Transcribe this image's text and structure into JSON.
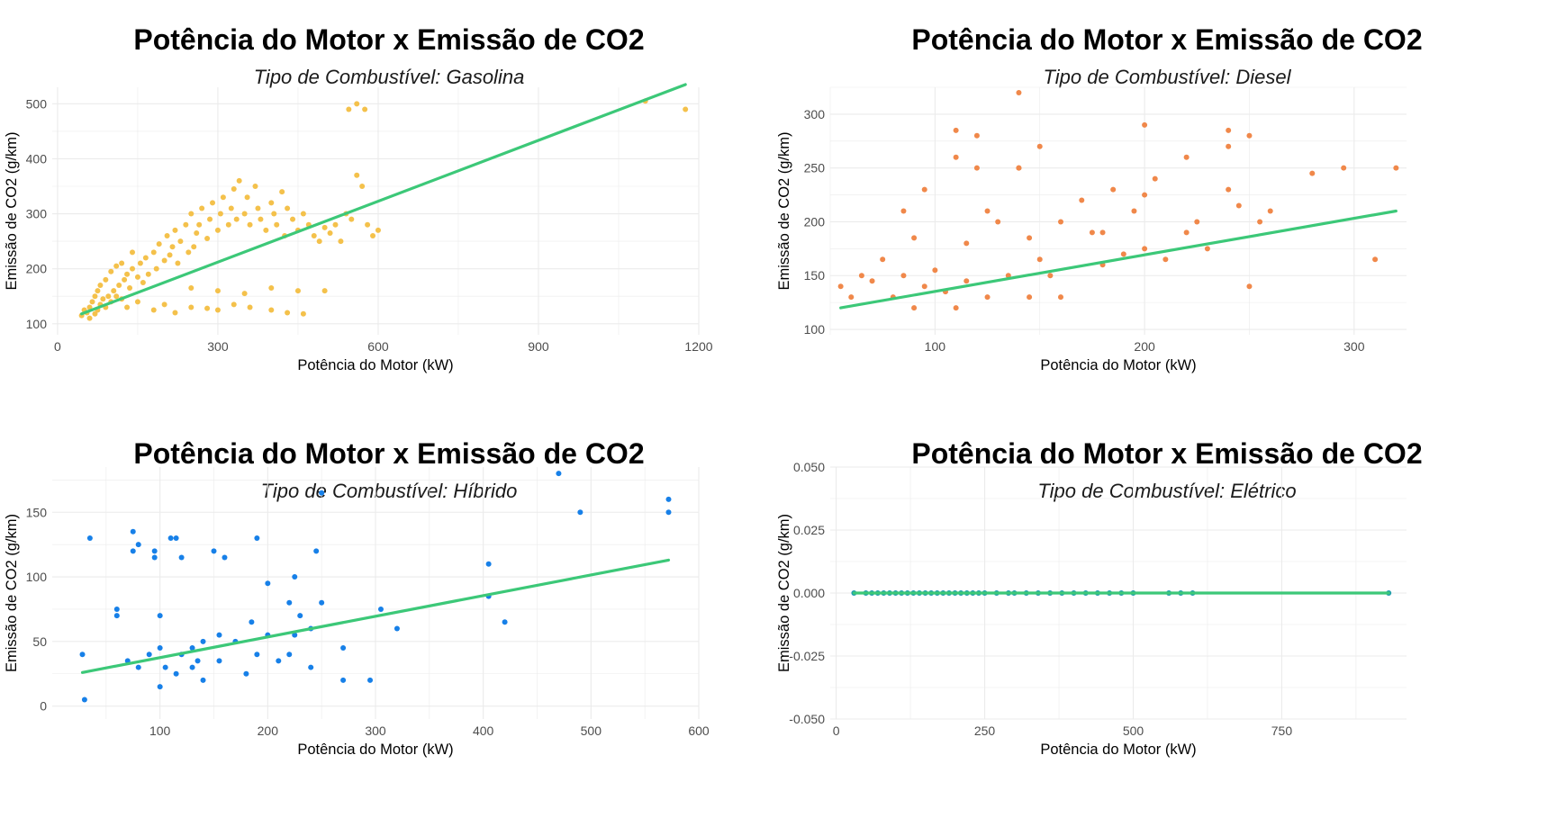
{
  "colors": {
    "gasolina": "#f4c14b",
    "diesel": "#f0884a",
    "hibrido": "#1780e8",
    "eletrico": "#1f9bb0",
    "trend": "#3cc878",
    "grid": "#ebebeb"
  },
  "chart_data": [
    {
      "type": "scatter",
      "title": "Potência do Motor x Emissão de CO2",
      "subtitle": "Tipo de Combustível: Gasolina",
      "xlabel": "Potência do Motor (kW)",
      "ylabel": "Emissão de CO2 (g/km)",
      "xlim": [
        -10,
        1200
      ],
      "ylim": [
        80,
        530
      ],
      "xticks": [
        0,
        300,
        600,
        900,
        1200
      ],
      "yticks": [
        100,
        200,
        300,
        400,
        500
      ],
      "trend": {
        "x": [
          45,
          1175
        ],
        "y": [
          118,
          535
        ]
      },
      "x": [
        45,
        50,
        55,
        60,
        60,
        65,
        70,
        70,
        75,
        75,
        80,
        80,
        85,
        90,
        90,
        95,
        100,
        100,
        105,
        110,
        110,
        115,
        120,
        120,
        125,
        130,
        135,
        140,
        140,
        150,
        155,
        160,
        165,
        170,
        180,
        185,
        190,
        200,
        205,
        210,
        215,
        220,
        225,
        230,
        240,
        245,
        250,
        255,
        260,
        265,
        270,
        280,
        285,
        290,
        300,
        305,
        310,
        320,
        325,
        330,
        335,
        340,
        350,
        355,
        360,
        370,
        375,
        380,
        390,
        400,
        405,
        410,
        420,
        425,
        430,
        440,
        450,
        460,
        470,
        480,
        490,
        500,
        510,
        520,
        530,
        540,
        550,
        560,
        570,
        580,
        590,
        600,
        130,
        150,
        180,
        200,
        220,
        250,
        280,
        300,
        330,
        360,
        400,
        430,
        460,
        250,
        300,
        350,
        400,
        450,
        500,
        560,
        545,
        575,
        1100,
        1175
      ],
      "y": [
        115,
        125,
        120,
        130,
        110,
        140,
        118,
        150,
        125,
        160,
        135,
        170,
        145,
        130,
        180,
        150,
        140,
        195,
        160,
        150,
        205,
        170,
        145,
        210,
        180,
        190,
        165,
        200,
        230,
        185,
        210,
        175,
        220,
        190,
        230,
        200,
        245,
        215,
        260,
        225,
        240,
        270,
        210,
        250,
        280,
        230,
        300,
        240,
        265,
        280,
        310,
        255,
        290,
        320,
        270,
        300,
        330,
        280,
        310,
        345,
        290,
        360,
        300,
        330,
        280,
        350,
        310,
        290,
        270,
        320,
        300,
        280,
        340,
        260,
        310,
        290,
        270,
        300,
        280,
        260,
        250,
        275,
        265,
        280,
        250,
        300,
        290,
        370,
        350,
        280,
        260,
        270,
        130,
        140,
        125,
        135,
        120,
        130,
        128,
        125,
        135,
        130,
        125,
        120,
        118,
        165,
        160,
        155,
        165,
        160,
        160,
        500,
        490,
        490,
        505,
        490
      ]
    },
    {
      "type": "scatter",
      "title": "Potência do Motor x Emissão de CO2",
      "subtitle": "Tipo de Combustível: Diesel",
      "xlabel": "Potência do Motor (kW)",
      "ylabel": "Emissão de CO2 (g/km)",
      "xlim": [
        50,
        325
      ],
      "ylim": [
        95,
        325
      ],
      "xticks": [
        100,
        200,
        300
      ],
      "yticks": [
        100,
        150,
        200,
        250,
        300
      ],
      "trend": {
        "x": [
          55,
          320
        ],
        "y": [
          120,
          210
        ]
      },
      "x": [
        55,
        60,
        65,
        70,
        75,
        80,
        85,
        90,
        90,
        95,
        100,
        105,
        110,
        110,
        115,
        120,
        125,
        130,
        135,
        140,
        145,
        145,
        150,
        155,
        160,
        170,
        175,
        180,
        185,
        190,
        195,
        200,
        205,
        210,
        220,
        225,
        230,
        240,
        245,
        250,
        255,
        280,
        295,
        310,
        320,
        85,
        95,
        115,
        125,
        140,
        160,
        180,
        200,
        220,
        240,
        260,
        110,
        120,
        140,
        150,
        200,
        240,
        250
      ],
      "y": [
        140,
        130,
        150,
        145,
        165,
        130,
        150,
        120,
        185,
        140,
        155,
        135,
        260,
        120,
        145,
        250,
        130,
        200,
        150,
        320,
        185,
        130,
        165,
        150,
        130,
        220,
        190,
        160,
        230,
        170,
        210,
        175,
        240,
        165,
        260,
        200,
        175,
        285,
        215,
        280,
        200,
        245,
        250,
        165,
        250,
        210,
        230,
        180,
        210,
        250,
        200,
        190,
        225,
        190,
        270,
        210,
        285,
        280,
        250,
        270,
        290,
        230,
        140
      ]
    },
    {
      "type": "scatter",
      "title": "Potência do Motor x Emissão de CO2",
      "subtitle": "Tipo de Combustível: Híbrido",
      "xlabel": "Potência do Motor (kW)",
      "ylabel": "Emissão de CO2 (g/km)",
      "xlim": [
        0,
        600
      ],
      "ylim": [
        -10,
        185
      ],
      "xticks": [
        100,
        200,
        300,
        400,
        500,
        600
      ],
      "yticks": [
        0,
        50,
        100,
        150
      ],
      "trend": {
        "x": [
          28,
          572
        ],
        "y": [
          26,
          113
        ]
      },
      "x": [
        28,
        30,
        35,
        60,
        60,
        70,
        75,
        75,
        80,
        80,
        90,
        95,
        95,
        100,
        100,
        100,
        105,
        110,
        115,
        115,
        120,
        120,
        130,
        130,
        135,
        140,
        140,
        150,
        155,
        155,
        160,
        170,
        180,
        185,
        190,
        190,
        200,
        200,
        210,
        220,
        220,
        225,
        225,
        230,
        240,
        240,
        245,
        250,
        250,
        270,
        270,
        295,
        305,
        320,
        405,
        405,
        420,
        470,
        490,
        572,
        572
      ],
      "y": [
        40,
        5,
        130,
        75,
        70,
        35,
        120,
        135,
        30,
        125,
        40,
        120,
        115,
        45,
        70,
        15,
        30,
        130,
        25,
        130,
        40,
        115,
        30,
        45,
        35,
        20,
        50,
        120,
        35,
        55,
        115,
        50,
        25,
        65,
        130,
        40,
        95,
        55,
        35,
        40,
        80,
        55,
        100,
        70,
        60,
        30,
        120,
        165,
        80,
        45,
        20,
        20,
        75,
        60,
        85,
        110,
        65,
        180,
        150,
        150,
        160
      ]
    },
    {
      "type": "scatter",
      "title": "Potência do Motor x Emissão de CO2",
      "subtitle": "Tipo de Combustível: Elétrico",
      "xlabel": "Potência do Motor (kW)",
      "ylabel": "Emissão de CO2 (g/km)",
      "xlim": [
        -10,
        960
      ],
      "ylim": [
        -0.05,
        0.05
      ],
      "xticks": [
        0,
        250,
        500,
        750
      ],
      "yticks": [
        -0.05,
        -0.025,
        0,
        0.025,
        0.05
      ],
      "ytick_labels": [
        "-0.050",
        "-0.025",
        "0.000",
        "0.025",
        "0.050"
      ],
      "trend": {
        "x": [
          30,
          930
        ],
        "y": [
          0,
          0
        ]
      },
      "x": [
        30,
        50,
        60,
        70,
        80,
        90,
        100,
        110,
        120,
        130,
        140,
        150,
        160,
        170,
        180,
        190,
        200,
        210,
        220,
        230,
        240,
        250,
        270,
        290,
        300,
        320,
        340,
        360,
        380,
        400,
        420,
        440,
        460,
        480,
        500,
        560,
        580,
        600,
        930
      ],
      "y": [
        0,
        0,
        0,
        0,
        0,
        0,
        0,
        0,
        0,
        0,
        0,
        0,
        0,
        0,
        0,
        0,
        0,
        0,
        0,
        0,
        0,
        0,
        0,
        0,
        0,
        0,
        0,
        0,
        0,
        0,
        0,
        0,
        0,
        0,
        0,
        0,
        0,
        0,
        0
      ]
    }
  ]
}
